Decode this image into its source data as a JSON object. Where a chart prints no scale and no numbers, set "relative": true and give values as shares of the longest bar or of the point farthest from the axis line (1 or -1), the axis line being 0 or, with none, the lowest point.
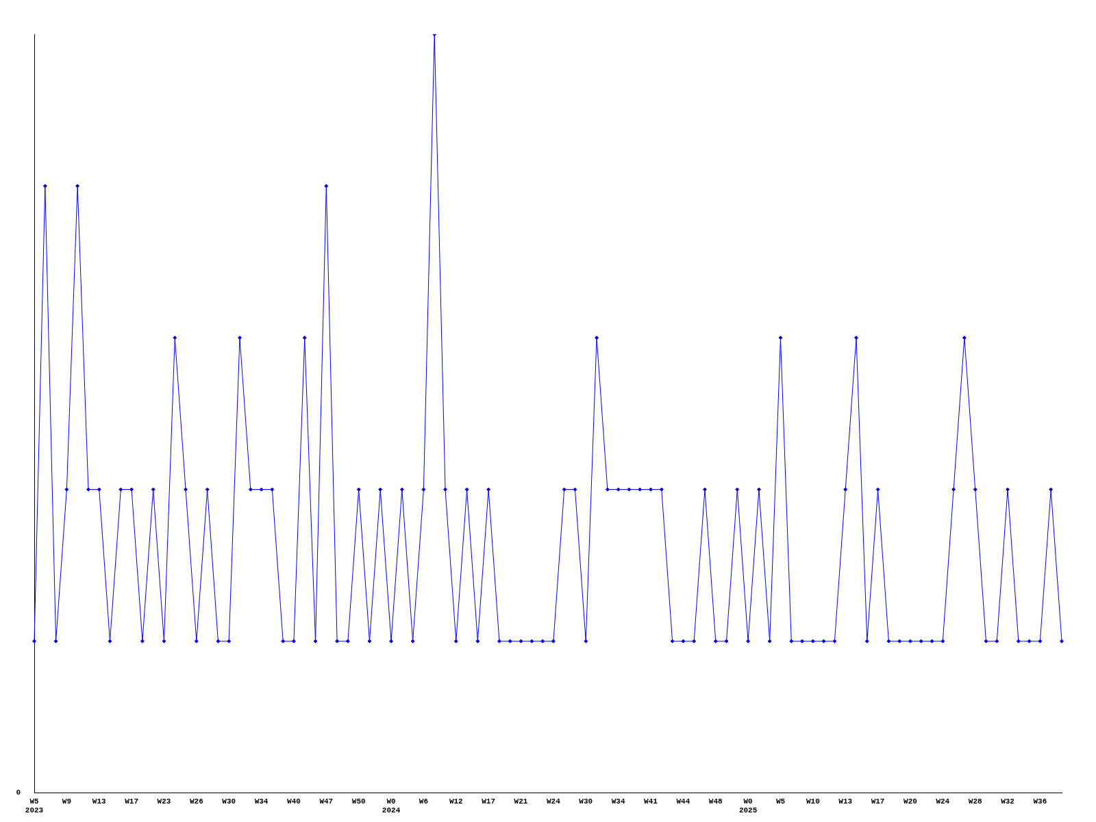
{
  "chart_data": {
    "type": "line",
    "relative": true,
    "marker": "diamond",
    "grid": false,
    "legend": false,
    "categories": [
      "W5\n2023",
      null,
      null,
      "W9",
      null,
      null,
      "W13",
      null,
      null,
      "W17",
      null,
      null,
      "W23",
      null,
      null,
      "W26",
      null,
      null,
      "W30",
      null,
      null,
      "W34",
      null,
      null,
      "W40",
      null,
      null,
      "W47",
      null,
      null,
      "W50",
      null,
      null,
      "W0\n2024",
      null,
      null,
      "W6",
      null,
      null,
      "W12",
      null,
      null,
      "W17",
      null,
      null,
      "W21",
      null,
      null,
      "W24",
      null,
      null,
      "W30",
      null,
      null,
      "W34",
      null,
      null,
      "W41",
      null,
      null,
      "W44",
      null,
      null,
      "W48",
      null,
      null,
      "W0\n2025",
      null,
      null,
      "W5",
      null,
      null,
      "W10",
      null,
      null,
      "W13",
      null,
      null,
      "W17",
      null,
      null,
      "W20",
      null,
      null,
      "W24",
      null,
      null,
      "W28",
      null,
      null,
      "W32",
      null,
      null,
      "W36",
      null,
      null
    ],
    "series": [
      {
        "color": "#0000ff",
        "values": [
          0.2,
          0.8,
          0.2,
          0.4,
          0.8,
          0.4,
          0.4,
          0.2,
          0.4,
          0.4,
          0.2,
          0.4,
          0.2,
          0.6,
          0.4,
          0.2,
          0.4,
          0.2,
          0.2,
          0.6,
          0.4,
          0.4,
          0.4,
          0.2,
          0.2,
          0.6,
          0.2,
          0.8,
          0.2,
          0.2,
          0.4,
          0.2,
          0.4,
          0.2,
          0.4,
          0.2,
          0.4,
          1,
          0.4,
          0.2,
          0.4,
          0.2,
          0.4,
          0.2,
          0.2,
          0.2,
          0.2,
          0.2,
          0.2,
          0.4,
          0.4,
          0.2,
          0.6,
          0.4,
          0.4,
          0.4,
          0.4,
          0.4,
          0.4,
          0.2,
          0.2,
          0.2,
          0.4,
          0.2,
          0.2,
          0.4,
          0.2,
          0.4,
          0.2,
          0.6,
          0.2,
          0.2,
          0.2,
          0.2,
          0.2,
          0.4,
          0.6,
          0.2,
          0.4,
          0.2,
          0.2,
          0.2,
          0.2,
          0.2,
          0.2,
          0.4,
          0.6,
          0.4,
          0.2,
          0.2,
          0.4,
          0.2,
          0.2,
          0.2,
          0.4,
          0.2
        ]
      }
    ],
    "annotations": [
      "0"
    ]
  }
}
